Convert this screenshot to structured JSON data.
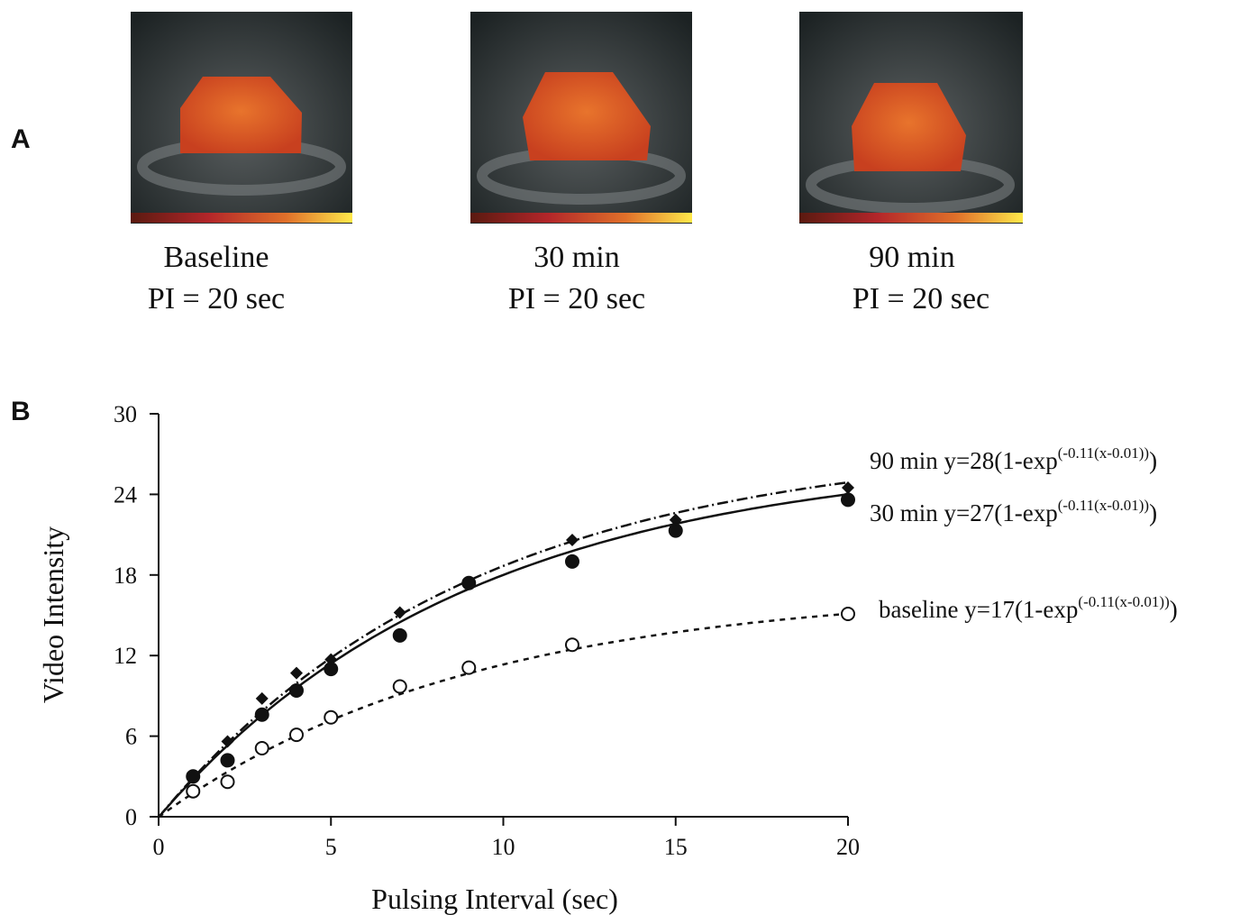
{
  "panel_a": {
    "label": "A",
    "images": [
      {
        "caption": [
          "Baseline",
          "PI = 20 sec"
        ]
      },
      {
        "caption": [
          "30 min",
          "PI = 20 sec"
        ]
      },
      {
        "caption": [
          "90 min",
          "PI = 20 sec"
        ]
      }
    ]
  },
  "chart_data": {
    "type": "scatter",
    "panel_label": "B",
    "x_label": "Pulsing Interval (sec)",
    "y_label": "Video Intensity",
    "xlim": [
      0,
      20
    ],
    "ylim": [
      0,
      30
    ],
    "xticks": [
      0,
      5,
      10,
      15,
      20
    ],
    "yticks": [
      0,
      6,
      12,
      18,
      24,
      30
    ],
    "x": [
      1,
      2,
      3,
      4,
      5,
      7,
      9,
      12,
      15,
      20
    ],
    "series": [
      {
        "name": "90 min",
        "label": "y=28(1-exp",
        "label_sup": "(-0.11(x-0.01))",
        "label_end": ")",
        "marker": "diamond",
        "line_style": "dashdot",
        "color": "#111111",
        "fit": {
          "a": 28,
          "k": -0.11,
          "x0": 0.01
        },
        "values": [
          1.9,
          5.6,
          8.8,
          10.7,
          11.7,
          15.2,
          17.4,
          20.6,
          22.1,
          24.5
        ]
      },
      {
        "name": "30 min",
        "label": "y=27(1-exp",
        "label_sup": "(-0.11(x-0.01))",
        "label_end": ")",
        "marker": "filled-circle",
        "line_style": "solid",
        "color": "#111111",
        "fit": {
          "a": 27,
          "k": -0.11,
          "x0": 0.01
        },
        "values": [
          3.0,
          4.2,
          7.6,
          9.4,
          11.0,
          13.5,
          17.4,
          19.0,
          21.3,
          23.6
        ]
      },
      {
        "name": "baseline",
        "label": "y=17(1-exp",
        "label_sup": "(-0.11(x-0.01))",
        "label_end": ")",
        "marker": "open-circle",
        "line_style": "dashed",
        "color": "#111111",
        "fit": {
          "a": 17,
          "k": -0.11,
          "x0": 0.01
        },
        "values": [
          1.9,
          2.6,
          5.1,
          6.1,
          7.4,
          9.7,
          11.1,
          12.8,
          null,
          15.1
        ]
      }
    ]
  }
}
